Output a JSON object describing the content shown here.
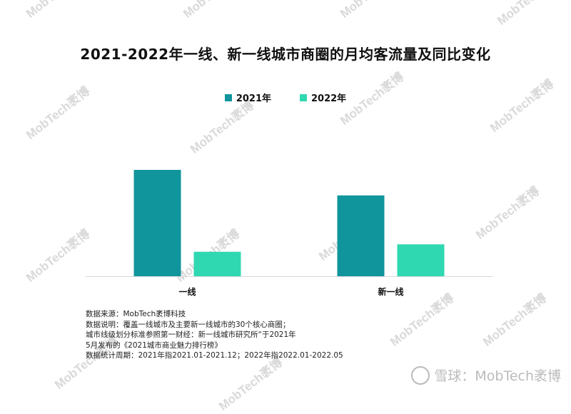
{
  "title": "2021-2022年一线、新一线城市商圈的月均客流量及同比变化",
  "legend": [
    {
      "label": "2021年",
      "color": "#10959c"
    },
    {
      "label": "2022年",
      "color": "#2fd8b0"
    }
  ],
  "chart_data": {
    "type": "bar",
    "title": "2021-2022年一线、新一线城市商圈的月均客流量及同比变化",
    "categories": [
      "一线",
      "新一线"
    ],
    "series": [
      {
        "name": "2021年",
        "values": [
          100,
          76
        ]
      },
      {
        "name": "2022年",
        "values": [
          23,
          30
        ]
      }
    ],
    "ylim": [
      0,
      100
    ],
    "grid": false,
    "legend_position": "top"
  },
  "notes": [
    "数据来源：MobTech袤博科技",
    "数据说明：覆盖一线城市及主要新一线城市的30个核心商圈；",
    "城市线级划分标准参照第一财经：新一线城市研究所“于2021年",
    "5月发布的《2021城市商业魅力排行榜》",
    "数据统计周期：2021年指2021.01-2021.12；2022年指2022.01-2022.05"
  ],
  "watermark": "MobTech袤博",
  "footer_brand": "雪球：MobTech袤博"
}
